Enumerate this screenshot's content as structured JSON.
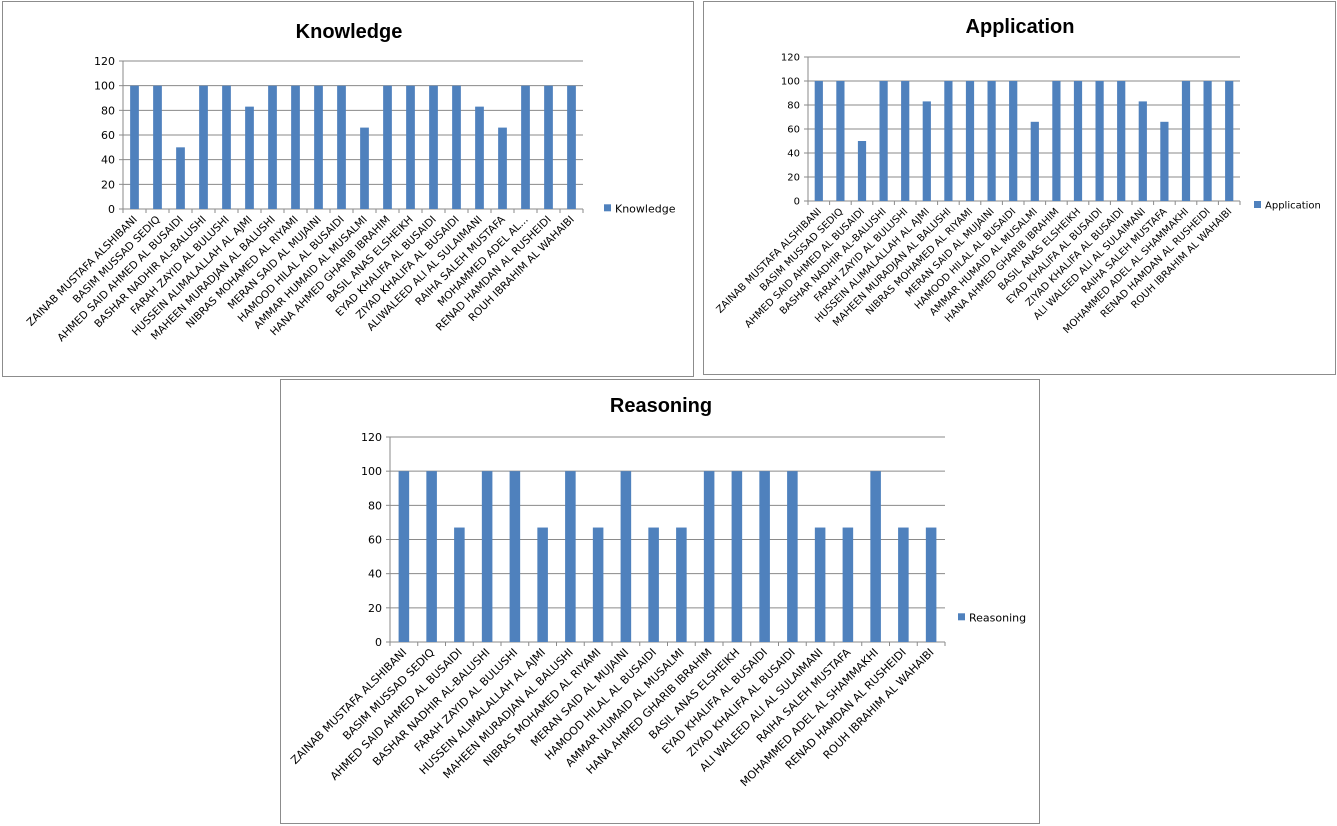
{
  "chart_data": [
    {
      "id": "knowledge",
      "type": "bar",
      "title": "Knowledge",
      "xlabel": "",
      "ylabel": "",
      "ylim": [
        0,
        120
      ],
      "yticks": [
        0,
        20,
        40,
        60,
        80,
        100,
        120
      ],
      "grid": true,
      "legend": "right",
      "series_color": "#4f81bd",
      "categories": [
        "ZAINAB MUSTAFA ALSHIBANI",
        "BASIM MUSSAD SEDIQ",
        "AHMED SAID AHMED AL BUSAIDI",
        "BASHAR NADHIR AL-BALUSHI",
        "FARAH ZAYID AL BULUSHI",
        "HUSSEIN ALIMALALLAH AL AJMI",
        "MAHEEN MURADJAN AL BALUSHI",
        "NIBRAS MOHAMED AL RIYAMI",
        "MERAN SAID AL MUJAINI",
        "HAMOOD HILAL AL BUSAIDI",
        "AMMAR HUMAID AL MUSALMI",
        "HANA AHMED GHARIB IBRAHIM",
        "BASIL ANAS ELSHEIKH",
        "EYAD KHALIFA AL BUSAIDI",
        "ZIYAD KHALIFA AL BUSAIDI",
        "ALIWALEED ALI AL SULAIMANI",
        "RAIHA SALEH MUSTAFA",
        "MOHAMMED ADEL AL...",
        "RENAD HAMDAN AL RUSHEIDI",
        "ROUH IBRAHIM AL WAHAIBI"
      ],
      "series": [
        {
          "name": "Knowledge",
          "values": [
            100,
            100,
            50,
            100,
            100,
            83,
            100,
            100,
            100,
            100,
            66,
            100,
            100,
            100,
            100,
            83,
            66,
            100,
            100,
            100
          ]
        }
      ]
    },
    {
      "id": "application",
      "type": "bar",
      "title": "Application",
      "xlabel": "",
      "ylabel": "",
      "ylim": [
        0,
        120
      ],
      "yticks": [
        0,
        20,
        40,
        60,
        80,
        100,
        120
      ],
      "grid": true,
      "legend": "right",
      "series_color": "#4f81bd",
      "categories": [
        "ZAINAB MUSTAFA ALSHIBANI",
        "BASIM MUSSAD SEDIQ",
        "AHMED SAID AHMED AL BUSAIDI",
        "BASHAR NADHIR AL-BALUSHI",
        "FARAH ZAYID AL BULUSHI",
        "HUSSEIN ALIMALALLAH AL AJMI",
        "MAHEEN MURADJAN AL BALUSHI",
        "NIBRAS MOHAMED AL RIYAMI",
        "MERAN SAID AL MUJAINI",
        "HAMOOD HILAL AL BUSAIDI",
        "AMMAR HUMAID AL MUSALMI",
        "HANA AHMED GHARIB IBRAHIM",
        "BASIL ANAS ELSHEIKH",
        "EYAD KHALIFA AL BUSAIDI",
        "ZIYAD KHALIFA AL BUSAIDI",
        "ALI WALEED ALI AL SULAIMANI",
        "RAIHA SALEH MUSTAFA",
        "MOHAMMED ADEL AL SHAMMAKHI",
        "RENAD HAMDAN AL RUSHEIDI",
        "ROUH IBRAHIM AL WAHAIBI"
      ],
      "series": [
        {
          "name": "Application",
          "values": [
            100,
            100,
            50,
            100,
            100,
            83,
            100,
            100,
            100,
            100,
            66,
            100,
            100,
            100,
            100,
            83,
            66,
            100,
            100,
            100
          ]
        }
      ]
    },
    {
      "id": "reasoning",
      "type": "bar",
      "title": "Reasoning",
      "xlabel": "",
      "ylabel": "",
      "ylim": [
        0,
        120
      ],
      "yticks": [
        0,
        20,
        40,
        60,
        80,
        100,
        120
      ],
      "grid": true,
      "legend": "right",
      "series_color": "#4f81bd",
      "categories": [
        "ZAINAB MUSTAFA ALSHIBANI",
        "BASIM MUSSAD SEDIQ",
        "AHMED SAID AHMED AL BUSAIDI",
        "BASHAR NADHIR AL-BALUSHI",
        "FARAH ZAYID AL BULUSHI",
        "HUSSEIN ALIMALALLAH AL AJMI",
        "MAHEEN MURADJAN AL BALUSHI",
        "NIBRAS MOHAMED AL RIYAMI",
        "MERAN SAID AL MUJAINI",
        "HAMOOD HILAL AL BUSAIDI",
        "AMMAR HUMAID AL MUSALMI",
        "HANA AHMED GHARIB IBRAHIM",
        "BASIL ANAS ELSHEIKH",
        "EYAD KHALIFA AL BUSAIDI",
        "ZIYAD KHALIFA AL BUSAIDI",
        "ALI WALEED ALI AL SULAIMANI",
        "RAIHA SALEH MUSTAFA",
        "MOHAMMED ADEL AL SHAMMAKHI",
        "RENAD HAMDAN AL RUSHEIDI",
        "ROUH IBRAHIM AL WAHAIBI"
      ],
      "series": [
        {
          "name": "Reasoning",
          "values": [
            100,
            100,
            67,
            100,
            100,
            67,
            100,
            67,
            100,
            67,
            67,
            100,
            100,
            100,
            100,
            67,
            67,
            100,
            67,
            67
          ]
        }
      ]
    }
  ]
}
